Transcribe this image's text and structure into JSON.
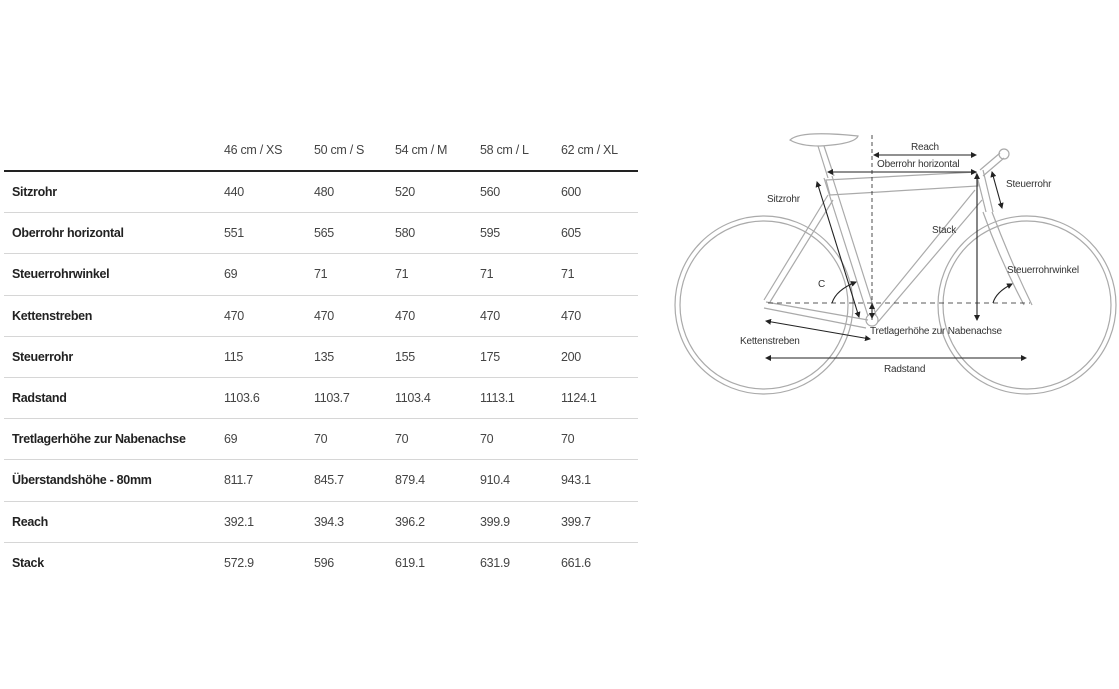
{
  "table": {
    "columns": [
      "46 cm / XS",
      "50 cm / S",
      "54 cm / M",
      "58 cm / L",
      "62 cm / XL"
    ],
    "rows": [
      {
        "label": "Sitzrohr",
        "values": [
          "440",
          "480",
          "520",
          "560",
          "600"
        ]
      },
      {
        "label": "Oberrohr horizontal",
        "values": [
          "551",
          "565",
          "580",
          "595",
          "605"
        ]
      },
      {
        "label": "Steuerrohrwinkel",
        "values": [
          "69",
          "71",
          "71",
          "71",
          "71"
        ]
      },
      {
        "label": "Kettenstreben",
        "values": [
          "470",
          "470",
          "470",
          "470",
          "470"
        ]
      },
      {
        "label": "Steuerrohr",
        "values": [
          "115",
          "135",
          "155",
          "175",
          "200"
        ]
      },
      {
        "label": "Radstand",
        "values": [
          "1103.6",
          "1103.7",
          "1103.4",
          "1113.1",
          "1124.1"
        ]
      },
      {
        "label": "Tretlagerhöhe zur Nabenachse",
        "values": [
          "69",
          "70",
          "70",
          "70",
          "70"
        ]
      },
      {
        "label": "Überstandshöhe - 80mm",
        "values": [
          "811.7",
          "845.7",
          "879.4",
          "910.4",
          "943.1"
        ]
      },
      {
        "label": "Reach",
        "values": [
          "392.1",
          "394.3",
          "396.2",
          "399.9",
          "399.7"
        ]
      },
      {
        "label": "Stack",
        "values": [
          "572.9",
          "596",
          "619.1",
          "631.9",
          "661.6"
        ]
      }
    ]
  },
  "diagram": {
    "labels": {
      "reach": "Reach",
      "top_tube": "Oberrohr horizontal",
      "head_tube": "Steuerrohr",
      "seat_tube": "Sitzrohr",
      "stack": "Stack",
      "head_angle": "Steuerrohrwinkel",
      "seat_angle": "C",
      "bb_drop": "Tretlagerhöhe zur Nabenachse",
      "chainstay": "Kettenstreben",
      "wheelbase": "Radstand"
    }
  }
}
